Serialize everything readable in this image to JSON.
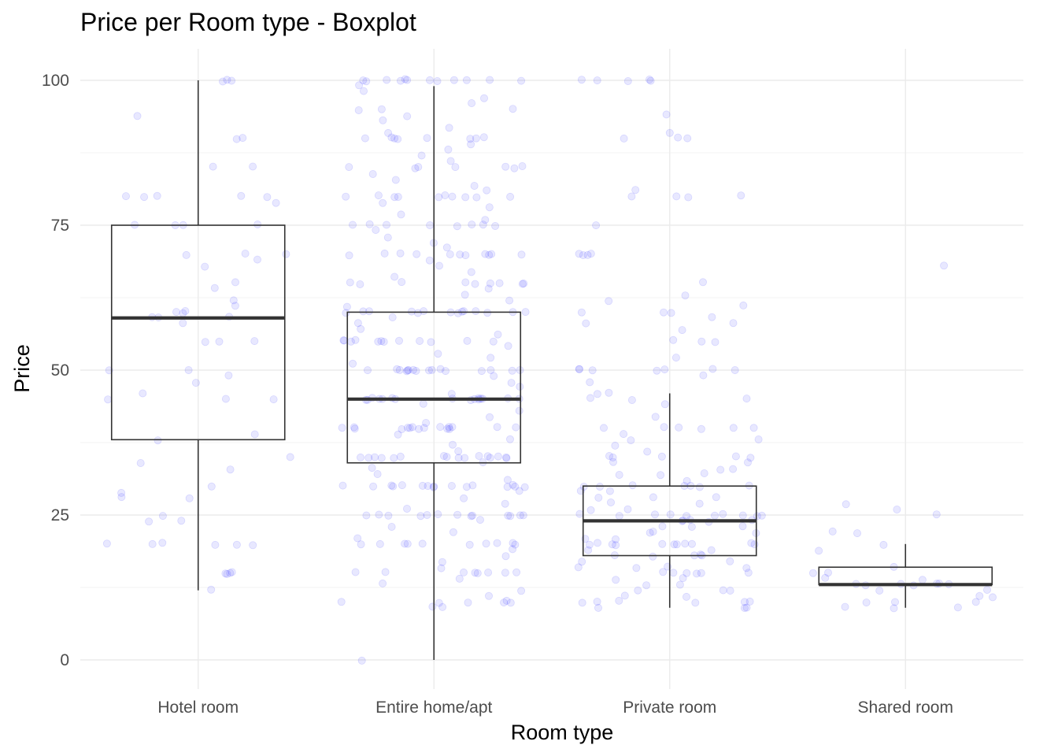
{
  "chart_data": {
    "type": "boxplot",
    "title": "Price per Room type - Boxplot",
    "xlabel": "Room type",
    "ylabel": "Price",
    "ylim": [
      0,
      100
    ],
    "yticks": [
      0,
      25,
      50,
      75,
      100
    ],
    "ytick_labels": [
      "0",
      "25",
      "50",
      "75",
      "100"
    ],
    "grid": true,
    "point_color": "#0000ff",
    "box_color": "#333333",
    "categories": [
      "Hotel room",
      "Entire home/apt",
      "Private room",
      "Shared room"
    ],
    "boxes": [
      {
        "category": "Hotel room",
        "whisker_low": 12,
        "q1": 38,
        "median": 59,
        "q3": 75,
        "whisker_high": 100
      },
      {
        "category": "Entire home/apt",
        "whisker_low": 0,
        "q1": 34,
        "median": 45,
        "q3": 60,
        "whisker_high": 99
      },
      {
        "category": "Private room",
        "whisker_low": 9,
        "q1": 18,
        "median": 24,
        "q3": 30,
        "whisker_high": 46
      },
      {
        "category": "Shared room",
        "whisker_low": 9,
        "q1": 13,
        "median": 13,
        "q3": 16,
        "whisker_high": 20
      }
    ],
    "points": [
      {
        "category": "Hotel room",
        "values": [
          100,
          100,
          100,
          94,
          90,
          90,
          85,
          85,
          80,
          80,
          80,
          80,
          80,
          79,
          75,
          75,
          75,
          75,
          70,
          70,
          70,
          69,
          68,
          65,
          64,
          62,
          61,
          60,
          60,
          60,
          59,
          59,
          59,
          58,
          55,
          55,
          55,
          50,
          50,
          49,
          48,
          46,
          45,
          45,
          45,
          39,
          38,
          35,
          34,
          33,
          30,
          29,
          28,
          28,
          25,
          24,
          24,
          20,
          20,
          20,
          20,
          20,
          20,
          15,
          15,
          15,
          15,
          12
        ]
      },
      {
        "category": "Entire home/apt",
        "values": [
          100,
          100,
          100,
          100,
          100,
          100,
          100,
          100,
          100,
          100,
          100,
          100,
          99,
          98,
          97,
          96,
          95,
          95,
          95,
          94,
          93,
          92,
          91,
          90,
          90,
          90,
          90,
          90,
          90,
          90,
          90,
          89,
          88,
          87,
          86,
          85,
          85,
          85,
          85,
          85,
          85,
          85,
          84,
          83,
          82,
          81,
          80,
          80,
          80,
          80,
          80,
          80,
          80,
          80,
          80,
          80,
          79,
          78,
          77,
          76,
          75,
          75,
          75,
          75,
          75,
          75,
          75,
          75,
          74,
          73,
          72,
          71,
          70,
          70,
          70,
          70,
          70,
          70,
          70,
          70,
          70,
          70,
          70,
          69,
          68,
          67,
          66,
          65,
          65,
          65,
          65,
          65,
          65,
          65,
          65,
          65,
          64,
          63,
          62,
          61,
          60,
          60,
          60,
          60,
          60,
          60,
          60,
          60,
          60,
          60,
          60,
          60,
          60,
          60,
          59,
          58,
          57,
          56,
          55,
          55,
          55,
          55,
          55,
          55,
          55,
          55,
          55,
          55,
          55,
          55,
          54,
          53,
          52,
          51,
          50,
          50,
          50,
          50,
          50,
          50,
          50,
          50,
          50,
          50,
          50,
          50,
          50,
          50,
          50,
          50,
          49,
          48,
          47,
          46,
          45,
          45,
          45,
          45,
          45,
          45,
          45,
          45,
          45,
          45,
          45,
          45,
          45,
          45,
          45,
          45,
          44,
          43,
          42,
          41,
          40,
          40,
          40,
          40,
          40,
          40,
          40,
          40,
          40,
          40,
          40,
          40,
          40,
          40,
          40,
          40,
          39,
          38,
          37,
          36,
          35,
          35,
          35,
          35,
          35,
          35,
          35,
          35,
          35,
          35,
          35,
          35,
          35,
          35,
          35,
          35,
          34,
          33,
          32,
          31,
          30,
          30,
          30,
          30,
          30,
          30,
          30,
          30,
          30,
          30,
          30,
          30,
          30,
          30,
          30,
          30,
          29,
          28,
          27,
          26,
          25,
          25,
          25,
          25,
          25,
          25,
          25,
          25,
          25,
          25,
          25,
          25,
          25,
          24,
          23,
          22,
          21,
          20,
          20,
          20,
          20,
          20,
          20,
          20,
          20,
          20,
          20,
          19,
          18,
          17,
          16,
          15,
          15,
          15,
          15,
          15,
          15,
          15,
          15,
          14,
          13,
          12,
          11,
          10,
          10,
          10,
          10,
          10,
          10,
          9,
          9,
          0
        ]
      },
      {
        "category": "Private room",
        "values": [
          100,
          100,
          100,
          100,
          100,
          94,
          91,
          90,
          90,
          90,
          81,
          80,
          80,
          80,
          80,
          75,
          70,
          70,
          70,
          70,
          65,
          63,
          62,
          61,
          60,
          60,
          60,
          59,
          58,
          58,
          57,
          55,
          55,
          55,
          52,
          50,
          50,
          50,
          50,
          50,
          50,
          50,
          49,
          48,
          46,
          46,
          45,
          45,
          45,
          44,
          42,
          40,
          40,
          40,
          40,
          40,
          40,
          39,
          38,
          38,
          37,
          36,
          35,
          35,
          35,
          35,
          35,
          34,
          34,
          33,
          33,
          32,
          32,
          32,
          31,
          30,
          30,
          30,
          30,
          30,
          30,
          30,
          29,
          29,
          28,
          28,
          28,
          27,
          27,
          26,
          26,
          25,
          25,
          25,
          25,
          25,
          25,
          25,
          25,
          25,
          25,
          24,
          24,
          24,
          24,
          24,
          23,
          23,
          23,
          22,
          22,
          22,
          21,
          21,
          20,
          20,
          20,
          20,
          20,
          20,
          20,
          20,
          20,
          20,
          20,
          19,
          19,
          18,
          18,
          18,
          18,
          18,
          17,
          17,
          16,
          16,
          16,
          16,
          15,
          15,
          15,
          15,
          15,
          15,
          14,
          14,
          13,
          13,
          12,
          12,
          12,
          11,
          11,
          10,
          10,
          10,
          10,
          10,
          10,
          9,
          9,
          9
        ]
      },
      {
        "category": "Shared room",
        "values": [
          68,
          27,
          26,
          25,
          22,
          22,
          20,
          19,
          16,
          15,
          15,
          14,
          14,
          13,
          13,
          13,
          13,
          13,
          13,
          13,
          12,
          12,
          11,
          11,
          10,
          10,
          10,
          9,
          9,
          9
        ]
      }
    ]
  }
}
